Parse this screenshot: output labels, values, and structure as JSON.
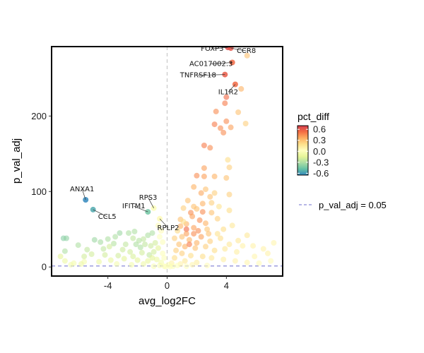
{
  "chart_data": {
    "type": "scatter",
    "title": "",
    "xlabel": "avg_log2FC",
    "ylabel": "p_val_adj",
    "xlim": [
      -7.8,
      7.8
    ],
    "ylim": [
      -12,
      292
    ],
    "xticks": [
      -4,
      0,
      4
    ],
    "yticks": [
      0,
      100,
      200
    ],
    "grid": false,
    "vline_x": 0,
    "hline_y": 1.3,
    "legend": {
      "title": "pct_diff",
      "position": "right",
      "colorbar_ticks": [
        0.6,
        0.3,
        0.0,
        -0.3,
        -0.6
      ],
      "colorbar_range": [
        -0.65,
        0.7
      ],
      "line_entry": "p_val_adj = 0.05"
    },
    "colors": {
      "scale": [
        "#3288bd",
        "#66c2a5",
        "#abdda4",
        "#e6f598",
        "#ffffbf",
        "#fee08b",
        "#fdae61",
        "#f46d43",
        "#d53e4f"
      ],
      "vline": "#c8c8c8",
      "hline": "#8a8ad8"
    },
    "labeled_points": [
      {
        "gene": "FOXP3",
        "x": 4.1,
        "y": 291,
        "pct_diff": 0.65
      },
      {
        "gene": "CCR8",
        "x": 4.3,
        "y": 290,
        "pct_diff": 0.62
      },
      {
        "gene": "AC017002.3",
        "x": 4.4,
        "y": 271,
        "pct_diff": 0.55
      },
      {
        "gene": "TNFRSF18",
        "x": 3.9,
        "y": 255,
        "pct_diff": 0.6
      },
      {
        "gene": "IL1R2",
        "x": 4.6,
        "y": 242,
        "pct_diff": 0.55
      },
      {
        "gene": "ANXA1",
        "x": -5.5,
        "y": 89,
        "pct_diff": -0.65
      },
      {
        "gene": "CCL5",
        "x": -5.0,
        "y": 76,
        "pct_diff": -0.55
      },
      {
        "gene": "IFITM1",
        "x": -1.3,
        "y": 73,
        "pct_diff": -0.45
      },
      {
        "gene": "RPS3",
        "x": -0.9,
        "y": 78,
        "pct_diff": 0.0
      },
      {
        "gene": "RPLP2",
        "x": -0.5,
        "y": 64,
        "pct_diff": 0.05
      }
    ],
    "points": [
      {
        "x": 5.4,
        "y": 280,
        "c": 0.3
      },
      {
        "x": 5.0,
        "y": 236,
        "c": 0.35
      },
      {
        "x": 4.8,
        "y": 205,
        "c": 0.3
      },
      {
        "x": 5.3,
        "y": 190,
        "c": 0.25
      },
      {
        "x": 4.0,
        "y": 225,
        "c": 0.55
      },
      {
        "x": 3.9,
        "y": 217,
        "c": 0.5
      },
      {
        "x": 3.3,
        "y": 206,
        "c": 0.45
      },
      {
        "x": 3.2,
        "y": 189,
        "c": 0.5
      },
      {
        "x": 4.0,
        "y": 193,
        "c": 0.45
      },
      {
        "x": 3.6,
        "y": 184,
        "c": 0.45
      },
      {
        "x": 3.8,
        "y": 178,
        "c": 0.45
      },
      {
        "x": 4.3,
        "y": 185,
        "c": 0.4
      },
      {
        "x": 2.5,
        "y": 161,
        "c": 0.5
      },
      {
        "x": 2.9,
        "y": 158,
        "c": 0.45
      },
      {
        "x": 4.1,
        "y": 142,
        "c": 0.2
      },
      {
        "x": 4.2,
        "y": 132,
        "c": 0.25
      },
      {
        "x": 2.5,
        "y": 131,
        "c": 0.4
      },
      {
        "x": 2.5,
        "y": 120,
        "c": 0.4
      },
      {
        "x": 3.2,
        "y": 120,
        "c": 0.35
      },
      {
        "x": 4.0,
        "y": 118,
        "c": 0.3
      },
      {
        "x": 2.0,
        "y": 121,
        "c": 0.45
      },
      {
        "x": 1.8,
        "y": 106,
        "c": 0.35
      },
      {
        "x": 2.6,
        "y": 103,
        "c": 0.3
      },
      {
        "x": 3.2,
        "y": 98,
        "c": 0.25
      },
      {
        "x": 2.9,
        "y": 93,
        "c": 0.3
      },
      {
        "x": 4.2,
        "y": 96,
        "c": 0.25
      },
      {
        "x": 3.0,
        "y": 85,
        "c": 0.25
      },
      {
        "x": 2.4,
        "y": 84,
        "c": 0.35
      },
      {
        "x": 1.8,
        "y": 80,
        "c": 0.3
      },
      {
        "x": 2.0,
        "y": 77,
        "c": 0.3
      },
      {
        "x": 2.4,
        "y": 73,
        "c": 0.45
      },
      {
        "x": 1.6,
        "y": 72,
        "c": 0.45
      },
      {
        "x": 3.0,
        "y": 72,
        "c": 0.3
      },
      {
        "x": 4.2,
        "y": 75,
        "c": 0.2
      },
      {
        "x": 1.1,
        "y": 78,
        "c": 0.25
      },
      {
        "x": 1.7,
        "y": 67,
        "c": 0.4
      },
      {
        "x": 2.2,
        "y": 62,
        "c": 0.45
      },
      {
        "x": 1.3,
        "y": 57,
        "c": 0.35
      },
      {
        "x": 2.6,
        "y": 58,
        "c": 0.35
      },
      {
        "x": 3.4,
        "y": 64,
        "c": 0.25
      },
      {
        "x": 0.9,
        "y": 63,
        "c": 0.3
      },
      {
        "x": 1.3,
        "y": 50,
        "c": 0.55
      },
      {
        "x": 1.8,
        "y": 44,
        "c": 0.45
      },
      {
        "x": 2.3,
        "y": 40,
        "c": 0.4
      },
      {
        "x": 2.8,
        "y": 44,
        "c": 0.3
      },
      {
        "x": 3.6,
        "y": 38,
        "c": 0.2
      },
      {
        "x": 4.8,
        "y": 35,
        "c": 0.15
      },
      {
        "x": 5.8,
        "y": 28,
        "c": 0.1
      },
      {
        "x": 6.5,
        "y": 24,
        "c": 0.1
      },
      {
        "x": 7.2,
        "y": 32,
        "c": 0.08
      },
      {
        "x": 6.8,
        "y": 18,
        "c": 0.1
      },
      {
        "x": 5.4,
        "y": 42,
        "c": 0.15
      },
      {
        "x": 4.4,
        "y": 55,
        "c": 0.15
      },
      {
        "x": 3.8,
        "y": 50,
        "c": 0.2
      },
      {
        "x": 1.0,
        "y": 40,
        "c": 0.3
      },
      {
        "x": 1.5,
        "y": 36,
        "c": 0.35
      },
      {
        "x": 2.0,
        "y": 32,
        "c": 0.35
      },
      {
        "x": 0.8,
        "y": 30,
        "c": 0.3
      },
      {
        "x": 1.2,
        "y": 27,
        "c": 0.35
      },
      {
        "x": 1.9,
        "y": 25,
        "c": 0.3
      },
      {
        "x": 2.6,
        "y": 27,
        "c": 0.25
      },
      {
        "x": 3.2,
        "y": 22,
        "c": 0.2
      },
      {
        "x": 0.6,
        "y": 22,
        "c": 0.25
      },
      {
        "x": 1.0,
        "y": 18,
        "c": 0.25
      },
      {
        "x": 1.6,
        "y": 15,
        "c": 0.2
      },
      {
        "x": 2.4,
        "y": 14,
        "c": 0.2
      },
      {
        "x": 3.0,
        "y": 12,
        "c": 0.15
      },
      {
        "x": 3.8,
        "y": 10,
        "c": 0.12
      },
      {
        "x": 4.6,
        "y": 8,
        "c": 0.1
      },
      {
        "x": 5.4,
        "y": 6,
        "c": 0.08
      },
      {
        "x": 6.2,
        "y": 5,
        "c": 0.05
      },
      {
        "x": 0.5,
        "y": 12,
        "c": 0.2
      },
      {
        "x": 1.2,
        "y": 8,
        "c": 0.15
      },
      {
        "x": 2.0,
        "y": 6,
        "c": 0.12
      },
      {
        "x": 0.3,
        "y": 5,
        "c": 0.1
      },
      {
        "x": 0.9,
        "y": 4,
        "c": 0.1
      },
      {
        "x": 1.7,
        "y": 3,
        "c": 0.08
      },
      {
        "x": 2.7,
        "y": 2,
        "c": 0.05
      },
      {
        "x": 1.1,
        "y": 60,
        "c": 0.2
      },
      {
        "x": 3.9,
        "y": 24,
        "c": 0.15
      },
      {
        "x": 2.7,
        "y": 50,
        "c": 0.28
      },
      {
        "x": 3.5,
        "y": 80,
        "c": 0.18
      },
      {
        "x": 2.3,
        "y": 98,
        "c": 0.38
      },
      {
        "x": 1.4,
        "y": 88,
        "c": 0.3
      },
      {
        "x": 0.7,
        "y": 48,
        "c": 0.22
      },
      {
        "x": 2.9,
        "y": 34,
        "c": 0.25
      },
      {
        "x": 3.4,
        "y": 44,
        "c": 0.18
      },
      {
        "x": 4.7,
        "y": 20,
        "c": 0.12
      },
      {
        "x": 5.9,
        "y": 14,
        "c": 0.08
      },
      {
        "x": 7.0,
        "y": 8,
        "c": 0.05
      },
      {
        "x": 0.5,
        "y": 38,
        "c": 0.25
      },
      {
        "x": 1.3,
        "y": 44,
        "c": 0.4
      },
      {
        "x": 0.9,
        "y": 54,
        "c": 0.35
      },
      {
        "x": 1.8,
        "y": 52,
        "c": 0.4
      },
      {
        "x": 2.1,
        "y": 48,
        "c": 0.45
      },
      {
        "x": 1.5,
        "y": 30,
        "c": 0.5
      },
      {
        "x": 0.4,
        "y": 1,
        "c": 0.0
      },
      {
        "x": 0.7,
        "y": 2,
        "c": 0.02
      },
      {
        "x": 1.3,
        "y": 1,
        "c": 0.02
      },
      {
        "x": -0.2,
        "y": 1,
        "c": 0.0
      },
      {
        "x": -0.5,
        "y": 2,
        "c": -0.02
      },
      {
        "x": -0.9,
        "y": 1,
        "c": -0.03
      },
      {
        "x": 0.1,
        "y": 3,
        "c": 0.0
      },
      {
        "x": -0.1,
        "y": 0.5,
        "c": 0.0
      },
      {
        "x": 0.2,
        "y": 0.5,
        "c": 0.0
      },
      {
        "x": 5.1,
        "y": 28,
        "c": 0.1
      },
      {
        "x": 4.2,
        "y": 30,
        "c": 0.15
      },
      {
        "x": -7.0,
        "y": 38,
        "c": -0.4
      },
      {
        "x": -6.8,
        "y": 38,
        "c": -0.38
      },
      {
        "x": -6.9,
        "y": 21,
        "c": -0.3
      },
      {
        "x": -6.9,
        "y": 8,
        "c": -0.1
      },
      {
        "x": -6.3,
        "y": 5,
        "c": -0.05
      },
      {
        "x": -5.6,
        "y": 7,
        "c": -0.05
      },
      {
        "x": -4.9,
        "y": 36,
        "c": -0.35
      },
      {
        "x": -4.0,
        "y": 37,
        "c": -0.3
      },
      {
        "x": -3.2,
        "y": 45,
        "c": -0.35
      },
      {
        "x": -2.6,
        "y": 45,
        "c": -0.3
      },
      {
        "x": -3.5,
        "y": 40,
        "c": -0.3
      },
      {
        "x": -2.3,
        "y": 38,
        "c": -0.25
      },
      {
        "x": -1.6,
        "y": 37,
        "c": -0.25
      },
      {
        "x": -1.3,
        "y": 42,
        "c": -0.3
      },
      {
        "x": -1.0,
        "y": 45,
        "c": -0.3
      },
      {
        "x": -2.1,
        "y": 30,
        "c": -0.3
      },
      {
        "x": -1.8,
        "y": 26,
        "c": -0.3
      },
      {
        "x": -2.8,
        "y": 30,
        "c": -0.25
      },
      {
        "x": -3.9,
        "y": 27,
        "c": -0.2
      },
      {
        "x": -4.3,
        "y": 24,
        "c": -0.25
      },
      {
        "x": -5.4,
        "y": 23,
        "c": -0.25
      },
      {
        "x": -5.1,
        "y": 17,
        "c": -0.2
      },
      {
        "x": -4.2,
        "y": 16,
        "c": -0.2
      },
      {
        "x": -3.3,
        "y": 15,
        "c": -0.2
      },
      {
        "x": -2.5,
        "y": 20,
        "c": -0.2
      },
      {
        "x": -1.7,
        "y": 19,
        "c": -0.2
      },
      {
        "x": -1.2,
        "y": 16,
        "c": -0.25
      },
      {
        "x": -0.9,
        "y": 20,
        "c": -0.2
      },
      {
        "x": -0.6,
        "y": 25,
        "c": -0.15
      },
      {
        "x": -0.8,
        "y": 32,
        "c": -0.2
      },
      {
        "x": -2.9,
        "y": 11,
        "c": -0.15
      },
      {
        "x": -2.0,
        "y": 9,
        "c": -0.15
      },
      {
        "x": -1.3,
        "y": 8,
        "c": -0.12
      },
      {
        "x": -0.7,
        "y": 10,
        "c": -0.1
      },
      {
        "x": -3.8,
        "y": 9,
        "c": -0.12
      },
      {
        "x": -4.6,
        "y": 7,
        "c": -0.1
      },
      {
        "x": -5.8,
        "y": 4,
        "c": -0.08
      },
      {
        "x": -6.5,
        "y": 3,
        "c": -0.05
      },
      {
        "x": -3.4,
        "y": 4,
        "c": -0.05
      },
      {
        "x": -2.4,
        "y": 3,
        "c": -0.05
      },
      {
        "x": -1.6,
        "y": 4,
        "c": -0.08
      },
      {
        "x": -0.4,
        "y": 6,
        "c": -0.05
      },
      {
        "x": -0.6,
        "y": 55,
        "c": 0.05
      },
      {
        "x": -0.4,
        "y": 48,
        "c": 0.05
      },
      {
        "x": -0.5,
        "y": 40,
        "c": 0.02
      },
      {
        "x": -0.3,
        "y": 33,
        "c": 0.0
      },
      {
        "x": -0.3,
        "y": 18,
        "c": 0.0
      },
      {
        "x": -0.2,
        "y": 12,
        "c": 0.0
      },
      {
        "x": -2.2,
        "y": 47,
        "c": -0.3
      },
      {
        "x": -1.9,
        "y": 35,
        "c": -0.28
      },
      {
        "x": -1.5,
        "y": 30,
        "c": -0.25
      },
      {
        "x": -1.1,
        "y": 28,
        "c": -0.22
      },
      {
        "x": -4.5,
        "y": 33,
        "c": -0.32
      },
      {
        "x": -5.6,
        "y": 14,
        "c": -0.2
      },
      {
        "x": -3.0,
        "y": 23,
        "c": -0.22
      },
      {
        "x": -2.3,
        "y": 14,
        "c": -0.18
      },
      {
        "x": -1.0,
        "y": 12,
        "c": -0.15
      },
      {
        "x": -7.2,
        "y": 14,
        "c": -0.15
      },
      {
        "x": -6.0,
        "y": 29,
        "c": -0.3
      },
      {
        "x": -3.6,
        "y": 31,
        "c": -0.28
      }
    ]
  }
}
